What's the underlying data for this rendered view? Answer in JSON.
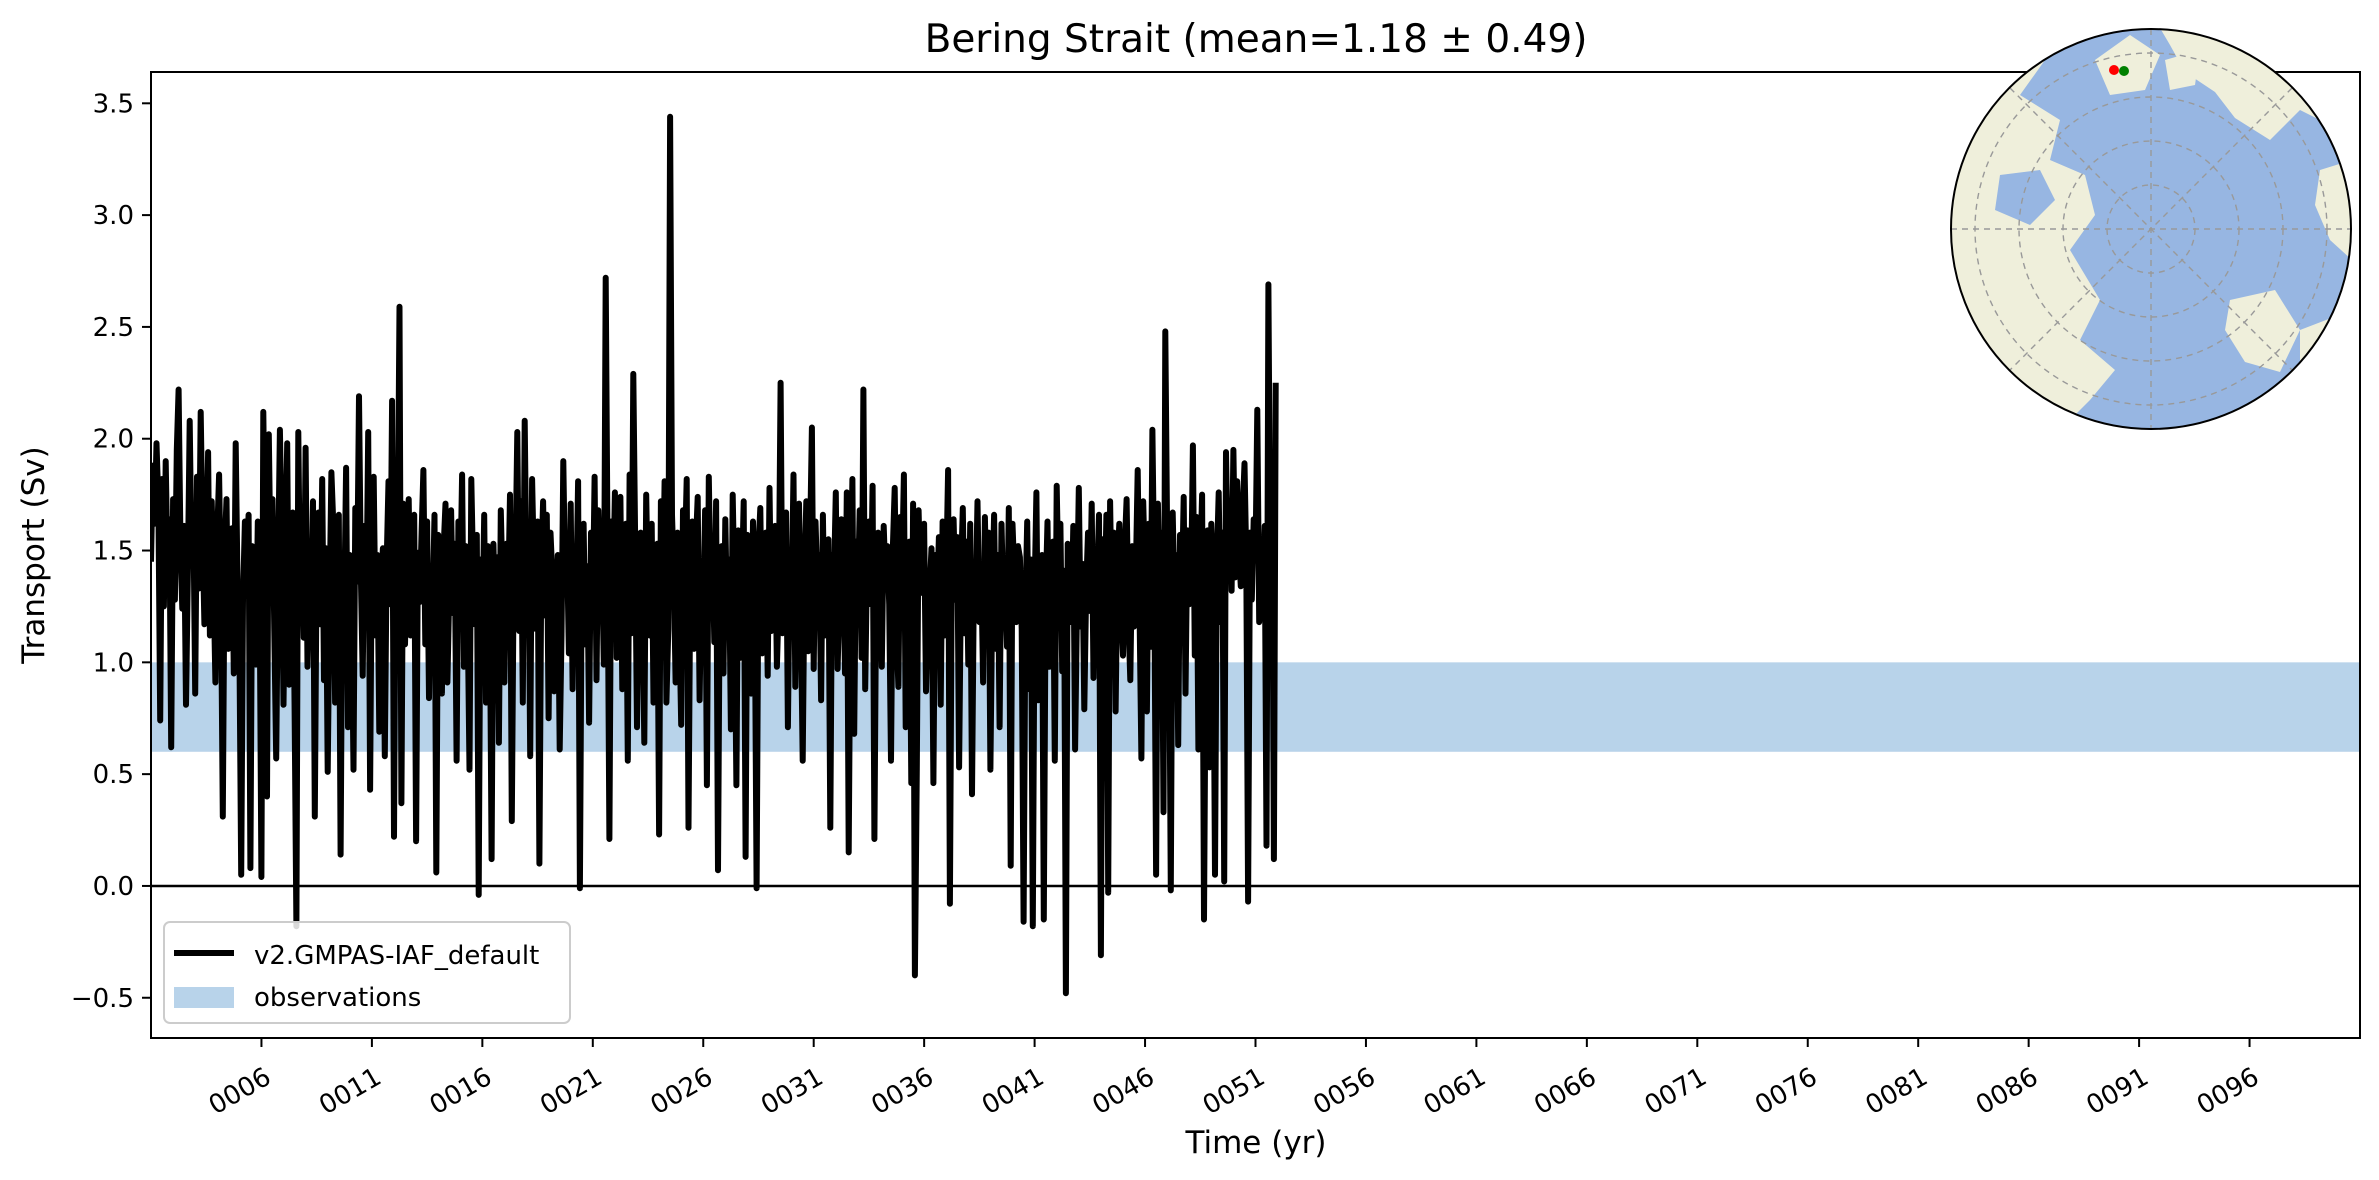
{
  "chart_data": {
    "type": "line",
    "title": "Bering Strait (mean=1.18 ± 0.49)",
    "xlabel": "Time (yr)",
    "ylabel": "Transport (Sv)",
    "xlim": [
      1.0,
      101.0
    ],
    "ylim": [
      -0.68,
      3.64
    ],
    "yticks": [
      -0.5,
      0.0,
      0.5,
      1.0,
      1.5,
      2.0,
      2.5,
      3.0,
      3.5
    ],
    "ytick_labels": [
      "−0.5",
      "0.0",
      "0.5",
      "1.0",
      "1.5",
      "2.0",
      "2.5",
      "3.0",
      "3.5"
    ],
    "xticks": [
      6,
      11,
      16,
      21,
      26,
      31,
      36,
      41,
      46,
      51,
      56,
      61,
      66,
      71,
      76,
      81,
      86,
      91,
      96
    ],
    "xtick_labels": [
      "0006",
      "0011",
      "0016",
      "0021",
      "0026",
      "0031",
      "0036",
      "0041",
      "0046",
      "0051",
      "0056",
      "0061",
      "0066",
      "0071",
      "0076",
      "0081",
      "0086",
      "0091",
      "0096"
    ],
    "zero_line": 0.0,
    "observations": {
      "name": "observations",
      "range": [
        0.6,
        1.0
      ],
      "color": "#b8d3ea"
    },
    "series": [
      {
        "name": "v2.GMPAS-IAF_default",
        "color": "#000000",
        "monthly_pattern": "monthly series, Jan 0001 - Dec 0100; values approximated",
        "x_start": 1.0,
        "x_step": 0.0833333,
        "values": [
          1.45,
          1.88,
          1.62,
          1.98,
          1.71,
          0.74,
          1.82,
          1.25,
          1.9,
          1.41,
          1.64,
          0.62,
          1.73,
          1.28,
          1.95,
          2.22,
          1.52,
          1.24,
          1.61,
          0.81,
          1.38,
          2.08,
          1.47,
          1.69,
          0.86,
          1.83,
          1.33,
          2.12,
          1.59,
          1.17,
          1.41,
          1.94,
          1.12,
          1.72,
          1.35,
          0.91,
          1.58,
          1.84,
          1.29,
          0.31,
          1.49,
          1.73,
          1.06,
          1.25,
          1.6,
          0.95,
          1.98,
          1.36,
          1.08,
          0.05,
          1.28,
          1.63,
          1.45,
          1.66,
          0.08,
          1.52,
          1.33,
          0.99,
          1.63,
          1.34,
          0.04,
          2.12,
          1.47,
          0.4,
          2.02,
          1.38,
          1.73,
          1.14,
          0.57,
          1.39,
          2.04,
          1.57,
          0.81,
          1.49,
          1.98,
          0.9,
          1.43,
          1.67,
          0.79,
          -0.18,
          2.03,
          1.26,
          1.54,
          1.11,
          1.96,
          0.98,
          1.38,
          1.22,
          1.72,
          0.31,
          1.49,
          1.67,
          1.17,
          1.82,
          0.92,
          1.51,
          0.51,
          1.28,
          1.85,
          1.63,
          0.82,
          1.42,
          1.66,
          0.14,
          1.43,
          1.26,
          1.87,
          0.71,
          1.48,
          1.24,
          0.52,
          1.69,
          1.36,
          2.19,
          1.38,
          0.94,
          1.61,
          1.24,
          2.03,
          0.43,
          1.57,
          1.83,
          1.12,
          1.48,
          0.69,
          1.34,
          1.51,
          0.58,
          1.43,
          1.81,
          1.26,
          2.17,
          0.22,
          1.68,
          1.53,
          2.59,
          0.37,
          1.71,
          1.08,
          1.44,
          1.73,
          1.12,
          1.32,
          1.66,
          0.2,
          1.49,
          1.27,
          1.58,
          1.86,
          1.08,
          1.63,
          0.84,
          1.43,
          1.22,
          1.66,
          0.06,
          1.57,
          1.38,
          0.86,
          1.52,
          1.71,
          0.91,
          1.31,
          1.68,
          1.22,
          1.53,
          0.56,
          1.63,
          1.36,
          1.84,
          0.98,
          1.52,
          1.24,
          0.52,
          1.82,
          1.41,
          1.17,
          1.57,
          -0.04,
          1.46,
          1.12,
          1.66,
          0.82,
          1.52,
          1.35,
          0.12,
          1.53,
          1.21,
          1.47,
          0.64,
          1.68,
          1.32,
          0.91,
          1.53,
          1.26,
          1.75,
          0.29,
          1.35,
          1.47,
          2.03,
          1.14,
          1.72,
          0.82,
          2.08,
          1.37,
          1.58,
          0.58,
          1.82,
          1.43,
          1.15,
          1.63,
          0.1,
          1.43,
          1.72,
          1.21,
          1.66,
          0.75,
          1.58,
          1.39,
          0.87,
          1.22,
          1.48,
          0.61,
          1.12,
          1.9,
          1.35,
          1.52,
          1.04,
          1.71,
          0.88,
          1.48,
          1.27,
          1.81,
          -0.01,
          1.46,
          1.62,
          1.08,
          1.43,
          0.73,
          1.58,
          1.24,
          1.83,
          0.92,
          1.68,
          1.36,
          1.46,
          0.99,
          2.72,
          1.55,
          0.21,
          1.63,
          1.28,
          1.76,
          1.02,
          1.52,
          1.74,
          0.88,
          1.4,
          1.62,
          0.56,
          1.84,
          1.13,
          2.29,
          1.57,
          0.71,
          1.41,
          1.58,
          1.26,
          0.64,
          1.75,
          1.29,
          1.12,
          1.62,
          0.82,
          1.36,
          1.53,
          0.23,
          1.72,
          1.26,
          1.81,
          0.82,
          1.15,
          3.44,
          1.66,
          1.39,
          0.91,
          1.58,
          1.18,
          0.72,
          1.68,
          1.46,
          1.82,
          0.26,
          1.45,
          1.63,
          1.06,
          1.53,
          1.74,
          0.83,
          1.38,
          1.19,
          1.68,
          0.45,
          1.83,
          1.32,
          1.54,
          1.09,
          1.72,
          0.07,
          1.37,
          1.52,
          0.95,
          1.64,
          1.16,
          1.46,
          0.7,
          1.75,
          1.31,
          0.45,
          1.59,
          1.02,
          1.36,
          1.72,
          0.13,
          1.57,
          1.41,
          0.86,
          1.63,
          1.26,
          -0.01,
          1.51,
          1.69,
          1.04,
          1.32,
          1.58,
          0.94,
          1.78,
          1.14,
          1.39,
          1.61,
          0.98,
          1.27,
          2.25,
          1.13,
          1.54,
          1.67,
          0.71,
          1.46,
          1.28,
          1.84,
          0.89,
          1.53,
          1.71,
          1.22,
          0.56,
          1.38,
          1.72,
          1.05,
          1.53,
          2.05,
          0.97,
          1.63,
          1.35,
          1.48,
          0.83,
          1.66,
          1.12,
          1.31,
          1.55,
          0.26,
          1.48,
          1.35,
          1.76,
          0.97,
          1.32,
          1.64,
          1.46,
          0.95,
          1.76,
          0.15,
          1.29,
          1.82,
          0.68,
          1.54,
          1.31,
          1.68,
          1.02,
          2.22,
          0.88,
          1.48,
          1.63,
          1.26,
          1.79,
          0.21,
          1.41,
          1.58,
          1.34,
          0.98,
          1.61,
          1.37,
          1.52,
          1.26,
          0.56,
          1.52,
          1.78,
          1.14,
          0.89,
          1.65,
          1.42,
          1.84,
          0.71,
          1.36,
          1.54,
          0.46,
          1.71,
          -0.4,
          0.52,
          1.68,
          1.31,
          1.44,
          1.62,
          0.87,
          1.26,
          1.33,
          1.51,
          0.46,
          1.48,
          1.26,
          1.56,
          0.81,
          1.63,
          1.12,
          1.38,
          1.86,
          -0.08,
          1.43,
          1.64,
          1.28,
          1.56,
          0.53,
          1.39,
          1.69,
          1.13,
          1.54,
          0.99,
          1.62,
          0.41,
          1.37,
          1.28,
          1.72,
          1.18,
          1.44,
          0.91,
          1.65,
          1.24,
          1.58,
          0.52,
          1.31,
          1.66,
          1.06,
          1.48,
          0.71,
          1.62,
          1.27,
          1.36,
          1.07,
          1.69,
          0.09,
          1.62,
          1.38,
          1.18,
          1.52,
          1.47,
          1.15,
          -0.16,
          1.24,
          1.63,
          0.88,
          1.46,
          -0.18,
          1.31,
          1.76,
          0.83,
          1.34,
          1.48,
          -0.15,
          1.28,
          1.63,
          0.98,
          1.37,
          1.54,
          0.56,
          1.79,
          1.34,
          1.62,
          0.96,
          1.41,
          -0.48,
          1.53,
          1.27,
          1.18,
          1.61,
          0.61,
          1.22,
          1.78,
          1.16,
          1.44,
          0.79,
          1.31,
          1.58,
          1.23,
          1.71,
          0.93,
          1.46,
          1.38,
          1.66,
          -0.31,
          1.55,
          1.24,
          1.66,
          -0.03,
          1.72,
          1.18,
          1.58,
          0.78,
          1.42,
          1.62,
          1.24,
          1.03,
          1.52,
          1.73,
          1.18,
          0.92,
          1.52,
          1.16,
          1.39,
          1.86,
          1.24,
          0.57,
          1.72,
          1.39,
          0.78,
          1.62,
          1.07,
          2.04,
          1.36,
          0.05,
          1.71,
          1.28,
          1.58,
          0.33,
          2.48,
          1.59,
          1.28,
          -0.02,
          1.67,
          1.28,
          1.48,
          0.63,
          1.57,
          1.32,
          1.74,
          0.86,
          1.59,
          1.26,
          1.34,
          1.97,
          1.03,
          1.65,
          0.61,
          1.42,
          1.75,
          -0.15,
          1.12,
          1.59,
          0.53,
          1.62,
          1.34,
          0.05,
          1.44,
          1.76,
          1.18,
          1.58,
          0.02,
          1.94,
          1.43,
          1.72,
          1.32,
          1.95,
          1.38,
          1.81,
          1.51,
          1.34,
          1.66,
          1.89,
          1.45,
          -0.07,
          1.58,
          1.28,
          1.64,
          1.47,
          2.13,
          1.18,
          1.52,
          1.34,
          1.61,
          0.18,
          2.69,
          1.42,
          1.87,
          0.12,
          2.25
        ]
      }
    ],
    "legend": {
      "position": "lower-left",
      "entries": [
        "v2.GMPAS-IAF_default",
        "observations"
      ]
    },
    "inset_map": {
      "projection": "north-polar-stereographic",
      "markers": [
        {
          "color": "#ff0000"
        },
        {
          "color": "#008000"
        }
      ],
      "land_color": "#efefdb",
      "ocean_color": "#97b6e2"
    }
  }
}
